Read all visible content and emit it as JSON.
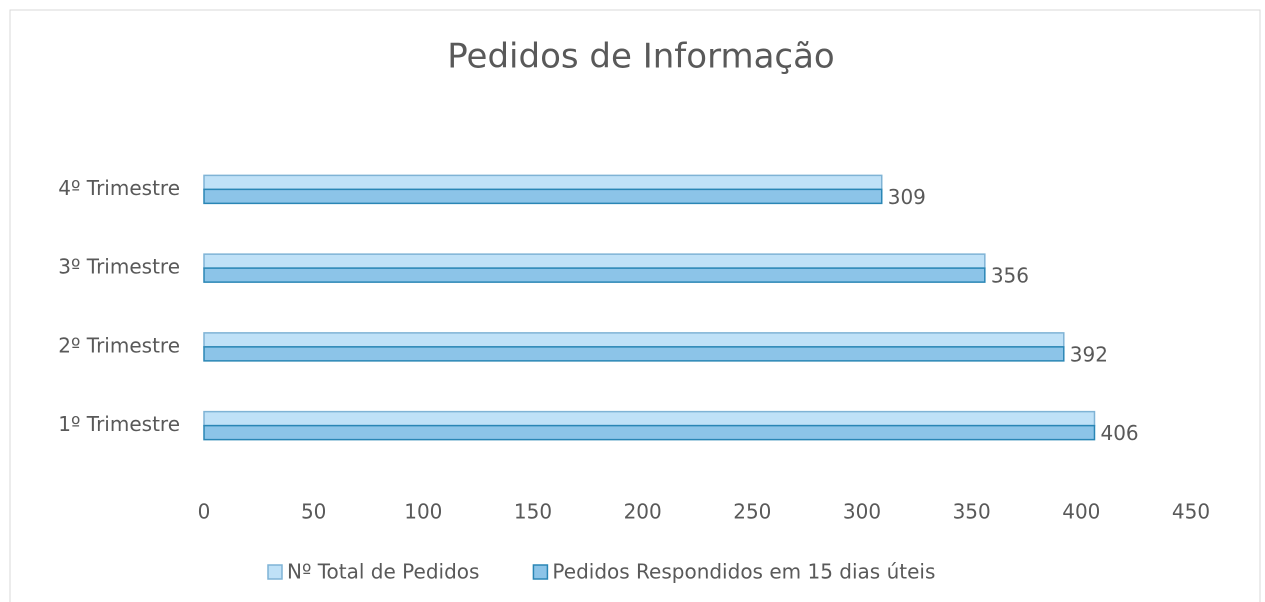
{
  "chart_data": {
    "type": "bar",
    "orientation": "horizontal",
    "title": "Pedidos de Informação",
    "categories": [
      "1º Trimestre",
      "2º Trimestre",
      "3º Trimestre",
      "4º Trimestre"
    ],
    "series": [
      {
        "name": "Nº Total de Pedidos",
        "color": "#bfe1f7",
        "values": [
          406,
          392,
          356,
          309
        ]
      },
      {
        "name": "Pedidos Respondidos em 15 dias úteis",
        "color": "#8cc4e8",
        "values": [
          406,
          392,
          356,
          309
        ]
      }
    ],
    "xlim": [
      0,
      450
    ],
    "xticks": [
      0,
      50,
      100,
      150,
      200,
      250,
      300,
      350,
      400,
      450
    ],
    "grid": false,
    "legend": "bottom"
  }
}
